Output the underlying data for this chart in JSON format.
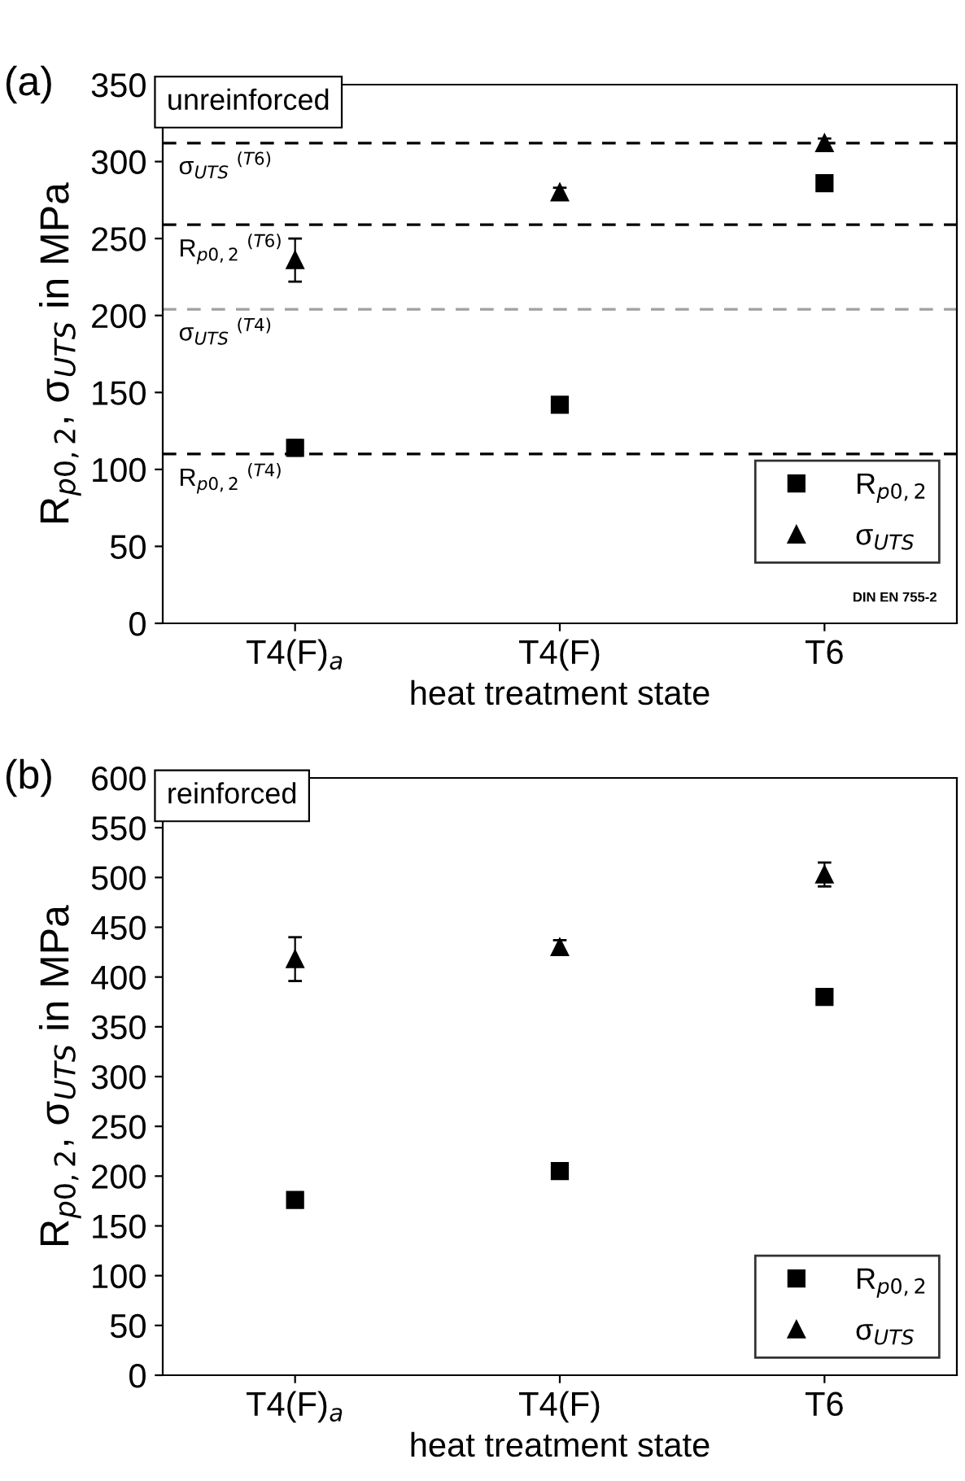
{
  "chart_data": [
    {
      "type": "scatter",
      "title": "(a)",
      "categories": [
        "T4(F)$_{a}$",
        "T4(F)",
        "T6"
      ],
      "xlabel": "heat treatment state",
      "ylabel": "R$_{p0,2}$, σ$_{UTS}$ in MPa",
      "ylim": [
        0,
        350
      ],
      "yticks": [
        0,
        50,
        100,
        150,
        200,
        250,
        300,
        350
      ],
      "grid": false,
      "legend": "bottom right",
      "series": [
        {
          "name": "R$_{p0,2}$",
          "color": "#000000",
          "marker": "square",
          "values": [
            114,
            142,
            286
          ],
          "errors": [
            5,
            3,
            null
          ]
        },
        {
          "name": "σ$_{UTS}$",
          "color": "#000000",
          "marker": "triangle",
          "values": [
            236,
            280,
            312
          ],
          "errors": [
            14,
            3,
            3
          ]
        }
      ],
      "ref_lines": [
        {
          "axis": "y",
          "value": 110,
          "label": "R$_{p0,2}$ $^{(T4)}$",
          "color": "#000000",
          "line_style": "dashed"
        },
        {
          "axis": "y",
          "value": 204,
          "label": "σ$_{UTS}$ $^{(T4)}$",
          "color": "#a0a0a0",
          "line_style": "dashed"
        },
        {
          "axis": "y",
          "value": 312,
          "label": "σ$_{UTS}$ $^{(T6)}$",
          "color": "#000000",
          "line_style": "dashed"
        },
        {
          "axis": "y",
          "value": 259,
          "label": "R$_{p0,2}$ $^{(T6)}$",
          "color": "#000000",
          "line_style": "dashed"
        }
      ],
      "annotations": [
        "unreinforced",
        "DIN EN 755-2"
      ]
    },
    {
      "type": "scatter",
      "title": "(b)",
      "categories": [
        "T4(F)$_{a}$",
        "T4(F)",
        "T6"
      ],
      "xlabel": "heat treatment state",
      "ylabel": "R$_{p0,2}$, σ$_{UTS}$ in MPa",
      "ylim": [
        0,
        600
      ],
      "yticks": [
        0,
        50,
        100,
        150,
        200,
        250,
        300,
        350,
        400,
        450,
        500,
        550,
        600
      ],
      "grid": false,
      "legend": "bottom right",
      "series": [
        {
          "name": "R$_{p0,2}$",
          "color": "#000000",
          "marker": "square",
          "values": [
            176,
            205,
            380
          ],
          "errors": [
            6,
            5,
            3
          ]
        },
        {
          "name": "σ$_{UTS}$",
          "color": "#000000",
          "marker": "triangle",
          "values": [
            418,
            430,
            503
          ],
          "errors": [
            22,
            7,
            12
          ]
        }
      ],
      "annotations": [
        "reinforced"
      ]
    }
  ]
}
